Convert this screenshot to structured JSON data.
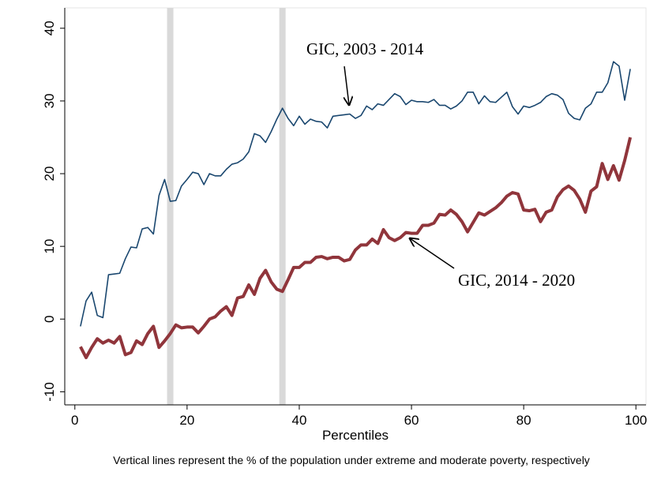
{
  "chart_data": {
    "type": "line",
    "x_label": "Percentiles",
    "note": "Vertical lines represent the % of the population under extreme and moderate poverty, respectively",
    "annotations": [
      "GIC, 2003 - 2014",
      "GIC, 2014 - 2020"
    ],
    "x": [
      1,
      2,
      3,
      4,
      5,
      6,
      7,
      8,
      9,
      10,
      11,
      12,
      13,
      14,
      15,
      16,
      17,
      18,
      19,
      20,
      21,
      22,
      23,
      24,
      25,
      26,
      27,
      28,
      29,
      30,
      31,
      32,
      33,
      34,
      35,
      36,
      37,
      38,
      39,
      40,
      41,
      42,
      43,
      44,
      45,
      46,
      47,
      48,
      49,
      50,
      51,
      52,
      53,
      54,
      55,
      56,
      57,
      58,
      59,
      60,
      61,
      62,
      63,
      64,
      65,
      66,
      67,
      68,
      69,
      70,
      71,
      72,
      73,
      74,
      75,
      76,
      77,
      78,
      79,
      80,
      81,
      82,
      83,
      84,
      85,
      86,
      87,
      88,
      89,
      90,
      91,
      92,
      93,
      94,
      95,
      96,
      97,
      98,
      99
    ],
    "series": [
      {
        "color": "#1a476f",
        "values": [
          -1,
          2.5,
          3.7,
          0.5,
          0.2,
          6.1,
          6.2,
          6.3,
          8.3,
          9.9,
          9.8,
          12.4,
          12.6,
          11.7,
          17,
          19.2,
          16.2,
          16.3,
          18.3,
          19.2,
          20.2,
          20,
          18.5,
          20,
          19.7,
          19.7,
          20.6,
          21.3,
          21.5,
          22,
          23,
          25.5,
          25.2,
          24.3,
          25.8,
          27.5,
          29,
          27.6,
          26.6,
          27.9,
          26.8,
          27.5,
          27.2,
          27.1,
          26.3,
          27.9,
          28,
          28.1,
          28.2,
          27.6,
          28,
          29.3,
          28.8,
          29.6,
          29.4,
          30.2,
          31,
          30.6,
          29.5,
          30.1,
          29.9,
          29.9,
          29.8,
          30.2,
          29.4,
          29.4,
          28.9,
          29.3,
          30,
          31.2,
          31.2,
          29.6,
          30.7,
          29.9,
          29.8,
          30.5,
          31.2,
          29.2,
          28.2,
          29.3,
          29.1,
          29.4,
          29.8,
          30.6,
          31,
          30.8,
          30.2,
          28.3,
          27.6,
          27.4,
          29,
          29.6,
          31.2,
          31.2,
          32.5,
          35.4,
          34.8,
          30.1,
          34.4
        ]
      },
      {
        "color": "#90353b",
        "values": [
          -3.8,
          -5.3,
          -3.9,
          -2.7,
          -3.3,
          -2.9,
          -3.3,
          -2.4,
          -4.9,
          -4.6,
          -3,
          -3.5,
          -2,
          -1,
          -3.9,
          -3,
          -2,
          -0.8,
          -1.2,
          -1.1,
          -1.1,
          -1.9,
          -1,
          0,
          0.3,
          1.1,
          1.7,
          0.5,
          2.9,
          3.1,
          4.7,
          3.4,
          5.6,
          6.7,
          5.1,
          4.1,
          3.8,
          5.4,
          7.1,
          7.1,
          7.8,
          7.8,
          8.5,
          8.6,
          8.3,
          8.5,
          8.5,
          8,
          8.2,
          9.5,
          10.2,
          10.2,
          11,
          10.4,
          12.3,
          11.2,
          10.8,
          11.2,
          11.9,
          11.8,
          11.8,
          12.9,
          12.9,
          13.2,
          14.4,
          14.3,
          15,
          14.4,
          13.4,
          12,
          13.3,
          14.6,
          14.3,
          14.8,
          15.3,
          16,
          16.9,
          17.4,
          17.2,
          15,
          14.9,
          15.1,
          13.4,
          14.7,
          15,
          16.8,
          17.8,
          18.3,
          17.7,
          16.5,
          14.7,
          17.6,
          18.2,
          21.4,
          19.2,
          21.1,
          19.1,
          21.8,
          25
        ]
      }
    ],
    "vlines": [
      17,
      37
    ],
    "vline_color": "#d9d9d9",
    "xlim": [
      -1.8,
      101.8
    ],
    "xticks": [
      0,
      20,
      40,
      60,
      80,
      100
    ],
    "ylim": [
      -11.8,
      42.8
    ],
    "yticks": [
      -10,
      0,
      10,
      20,
      30,
      40
    ]
  }
}
